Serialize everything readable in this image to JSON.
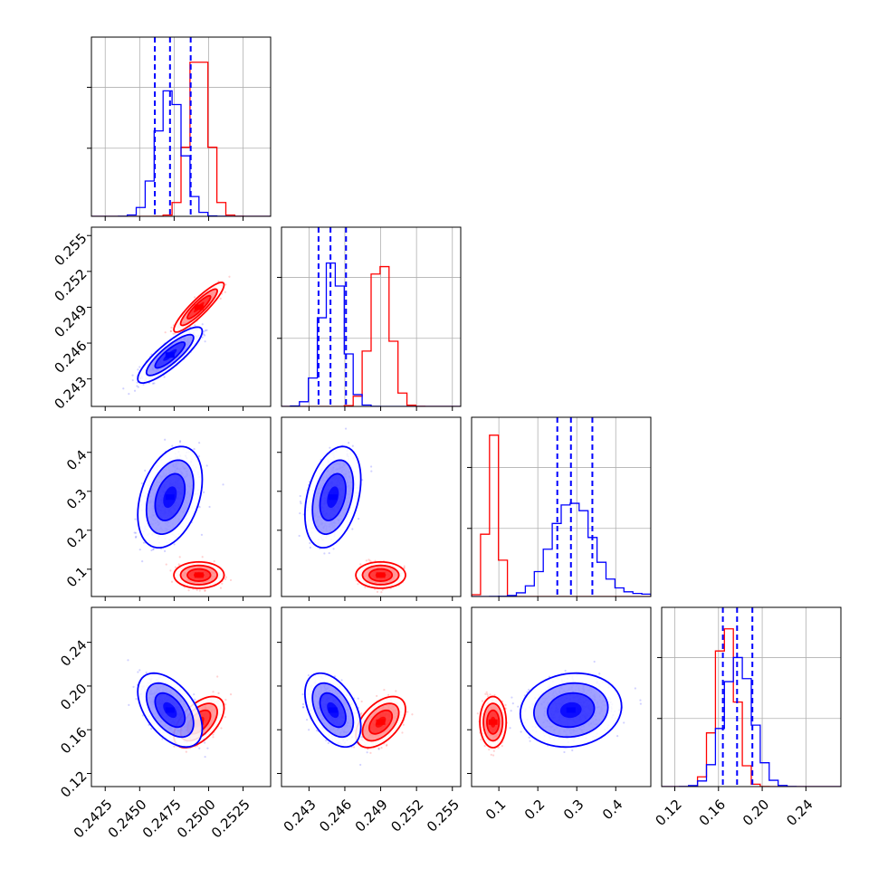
{
  "chart_data": {
    "type": "corner",
    "params": [
      {
        "range": [
          0.2415,
          0.2545
        ],
        "ticks": [
          "0.2425",
          "0.2450",
          "0.2475",
          "0.2500",
          "0.2525"
        ]
      },
      {
        "range": [
          0.2407,
          0.2557
        ],
        "ticks": [
          "0.243",
          "0.246",
          "0.249",
          "0.252",
          "0.255"
        ]
      },
      {
        "range": [
          0.03,
          0.49
        ],
        "ticks": [
          "0.1",
          "0.2",
          "0.3",
          "0.4"
        ]
      },
      {
        "range": [
          0.108,
          0.272
        ],
        "ticks": [
          "0.12",
          "0.16",
          "0.20",
          "0.24"
        ]
      }
    ],
    "series": [
      {
        "color": "#ff0000",
        "mean": [
          0.2493,
          0.249,
          0.085,
          0.167
        ],
        "sd": [
          0.0007,
          0.0008,
          0.013,
          0.009
        ],
        "corr": [
          [
            1,
            0.9,
            0.0,
            0.55
          ],
          [
            0.9,
            1,
            0.0,
            0.5
          ],
          [
            0.0,
            0.0,
            1,
            0.0
          ],
          [
            0.55,
            0.5,
            0.0,
            1
          ]
        ],
        "hist_peak_fraction": [
          0.86,
          0.78,
          0.9,
          0.88
        ]
      },
      {
        "color": "#0000ff",
        "mean": [
          0.2472,
          0.245,
          0.285,
          0.178
        ],
        "sd": [
          0.0009,
          0.0009,
          0.05,
          0.013
        ],
        "corr": [
          [
            1,
            0.85,
            0.35,
            -0.5
          ],
          [
            0.85,
            1,
            0.35,
            -0.45
          ],
          [
            0.35,
            0.35,
            1,
            0.1
          ],
          [
            -0.5,
            -0.45,
            0.1,
            1
          ]
        ],
        "hist_peak_fraction": [
          0.7,
          0.8,
          0.52,
          0.72
        ],
        "quantiles": [
          [
            0.2461,
            0.2472,
            0.2487
          ],
          [
            0.2438,
            0.2448,
            0.2461
          ],
          [
            0.25,
            0.285,
            0.34
          ],
          [
            0.164,
            0.177,
            0.191
          ]
        ]
      }
    ],
    "grid": true,
    "legend": "none"
  }
}
